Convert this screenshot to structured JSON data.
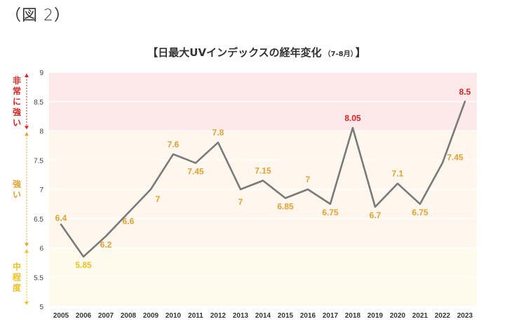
{
  "figure_label": "（図 2）",
  "colors": {
    "very_strong": "#e02020",
    "strong": "#e8a030",
    "moderate": "#f0c020",
    "line": "#7a7a7a",
    "band_very_strong": "#fde9ea",
    "band_strong": "#fff6ee",
    "band_moderate": "#fffbec",
    "grid": "#ffffff"
  },
  "chart_data": {
    "type": "line",
    "title": "【日最大UVインデックスの経年変化",
    "title_suffix": "（7-8月）",
    "title_close": "】",
    "x": [
      "2005",
      "2006",
      "2007",
      "2008",
      "2009",
      "2010",
      "2011",
      "2012",
      "2013",
      "2014",
      "2015",
      "2016",
      "2017",
      "2018",
      "2019",
      "2020",
      "2021",
      "2022",
      "2023"
    ],
    "values": [
      6.4,
      5.85,
      6.2,
      6.6,
      7,
      7.6,
      7.45,
      7.8,
      7,
      7.15,
      6.85,
      7,
      6.75,
      8.05,
      6.7,
      7.1,
      6.75,
      7.45,
      8.5
    ],
    "data_labels": [
      "6.4",
      "5.85",
      "6.2",
      "6.6",
      "7",
      "7.6",
      "7.45",
      "7.8",
      "7",
      "7.15",
      "6.85",
      "7",
      "6.75",
      "8.05",
      "6.7",
      "7.1",
      "6.75",
      "7.45",
      "8.5"
    ],
    "ylim": [
      5,
      9
    ],
    "yticks": [
      "5",
      "5.5",
      "6",
      "6.5",
      "7",
      "7.5",
      "8",
      "8.5",
      "9"
    ],
    "bands": [
      {
        "label": "非常に強い",
        "from": 8,
        "to": 9,
        "color_key": "very_strong"
      },
      {
        "label": "強い",
        "from": 6,
        "to": 8,
        "color_key": "strong"
      },
      {
        "label": "中程度",
        "from": 5,
        "to": 6,
        "color_key": "moderate"
      }
    ],
    "grid": true
  }
}
